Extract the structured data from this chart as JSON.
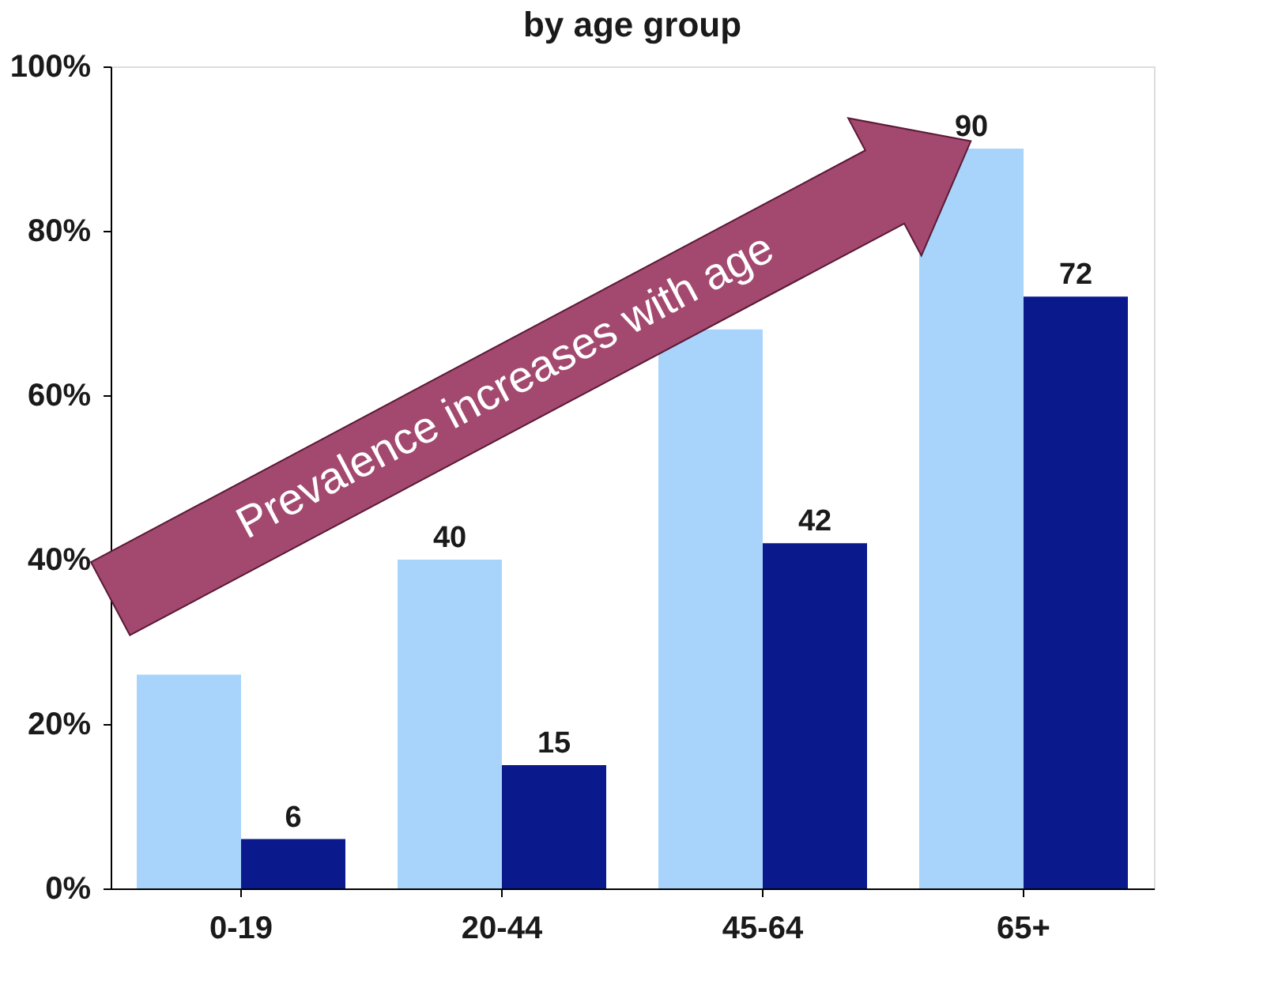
{
  "chart_data": {
    "type": "bar",
    "title": "by age group",
    "categories": [
      "0-19",
      "20-44",
      "45-64",
      "65+"
    ],
    "series": [
      {
        "color": "#a8d4fc",
        "values": [
          26,
          40,
          68,
          90
        ],
        "value_labels": [
          null,
          "40",
          null,
          "90"
        ]
      },
      {
        "color": "#0a1a8c",
        "values": [
          6,
          15,
          42,
          72
        ],
        "value_labels": [
          "6",
          "15",
          "42",
          "72"
        ]
      }
    ],
    "ylim": [
      0,
      100
    ],
    "yticks": [
      {
        "value": 0,
        "label": "0%"
      },
      {
        "value": 20,
        "label": "20%"
      },
      {
        "value": 40,
        "label": "40%"
      },
      {
        "value": 60,
        "label": "60%"
      },
      {
        "value": 80,
        "label": "80%"
      },
      {
        "value": 100,
        "label": "100%"
      }
    ],
    "grid": false,
    "annotations": [
      "Prevalence increases with age"
    ]
  }
}
